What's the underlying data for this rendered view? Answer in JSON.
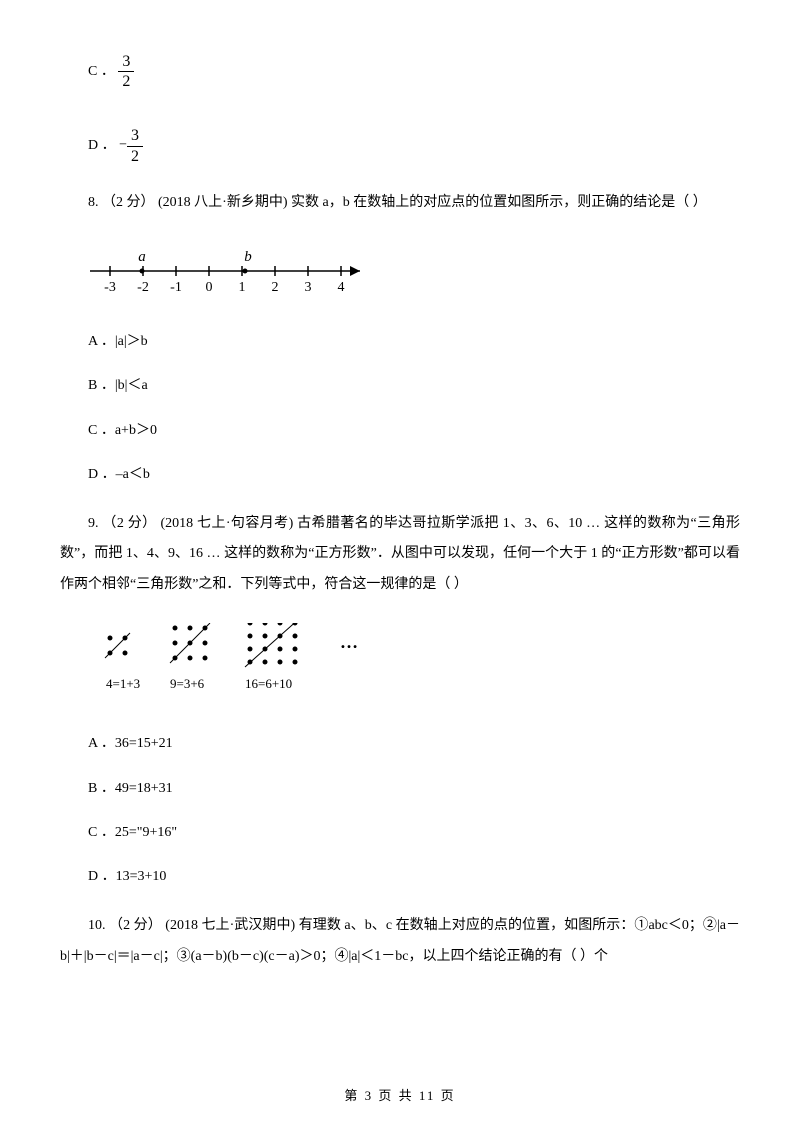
{
  "q7": {
    "optC_label": "C ．",
    "optC_num": "3",
    "optC_den": "2",
    "optD_label": "D ．",
    "optD_neg": "−",
    "optD_num": "3",
    "optD_den": "2"
  },
  "q8": {
    "stem": "8.  （2 分）   (2018 八上·新乡期中)   实数 a，b 在数轴上的对应点的位置如图所示，则正确的结论是（ ）",
    "numberline": {
      "ticks": [
        "-3",
        "-2",
        "-1",
        "0",
        "1",
        "2",
        "3",
        "4"
      ],
      "a_label": "a",
      "a_pos_between": [
        -3,
        -2
      ],
      "b_label": "b",
      "b_pos_between": [
        1,
        2
      ]
    },
    "optA": "A ．|a|＞b",
    "optB": "B ．|b|＜a",
    "optC": "C ．a+b＞0",
    "optD": "D ．–a＜b"
  },
  "q9": {
    "stem": "9.  （2 分）  (2018 七上·句容月考)  古希腊著名的毕达哥拉斯学派把 1、3、6、10 … 这样的数称为“三角形数”，而把 1、4、9、16 … 这样的数称为“正方形数”．从图中可以发现，任何一个大于 1 的“正方形数”都可以看作两个相邻“三角形数”之和．下列等式中，符合这一规律的是（    ）",
    "dots": {
      "captions": [
        "4=1+3",
        "9=3+6",
        "16=6+10"
      ],
      "ellipsis": "…"
    },
    "optA": "A ．36=15+21",
    "optB": "B ．49=18+31",
    "optC": "C ．25=\"9+16\"",
    "optD": "D ．13=3+10"
  },
  "q10": {
    "stem": "10.    （2 分）    (2018 七上·武汉期中)     有理数 a、b、c 在数轴上对应的点的位置，如图所示：①abc＜0；②|a－b|＋|b－c|＝|a－c|；③(a－b)(b－c)(c－a)＞0；④|a|＜1－bc，以上四个结论正确的有（  ）个"
  },
  "footer": "第 3 页 共 11 页",
  "colors": {
    "text": "#000000",
    "bg": "#ffffff"
  }
}
